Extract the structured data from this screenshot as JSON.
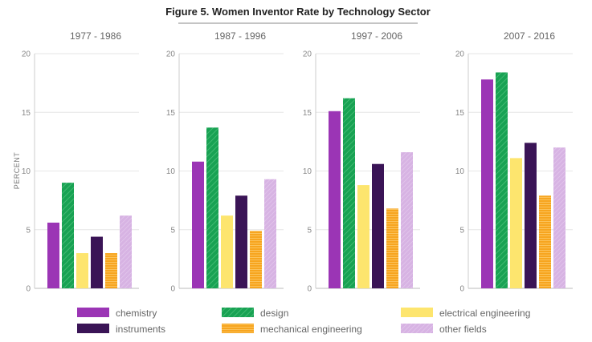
{
  "chart_data": {
    "type": "bar",
    "title": "Figure 5. Women Inventor Rate by Technology Sector",
    "ylabel": "PERCENT",
    "xlabel": "",
    "ylim": [
      0,
      20
    ],
    "yticks": [
      0,
      5,
      10,
      15,
      20
    ],
    "grid": true,
    "legend_position": "bottom",
    "panels": [
      {
        "title": "1977 - 1986",
        "values": [
          5.6,
          9.0,
          3.0,
          4.4,
          3.0,
          6.2
        ]
      },
      {
        "title": "1987 - 1996",
        "values": [
          10.8,
          13.7,
          6.2,
          7.9,
          4.9,
          9.3
        ]
      },
      {
        "title": "1997 - 2006",
        "values": [
          15.1,
          16.2,
          8.8,
          10.6,
          6.8,
          11.6
        ]
      },
      {
        "title": "2007 - 2016",
        "values": [
          17.8,
          18.4,
          11.1,
          12.4,
          7.9,
          12.0
        ]
      }
    ],
    "series": [
      {
        "name": "chemistry",
        "color": "#9b35b5",
        "pattern": "solid"
      },
      {
        "name": "design",
        "color": "#18a253",
        "pattern": "diagonal-hatch"
      },
      {
        "name": "electrical engineering",
        "color": "#fde56e",
        "pattern": "solid"
      },
      {
        "name": "instruments",
        "color": "#3a1456",
        "pattern": "solid"
      },
      {
        "name": "mechanical engineering",
        "color": "#f7a51f",
        "pattern": "horizontal-hatch"
      },
      {
        "name": "other fields",
        "color": "#d7b3e3",
        "pattern": "light-hatch"
      }
    ],
    "legend_order": [
      "chemistry",
      "design",
      "electrical engineering",
      "instruments",
      "mechanical engineering",
      "other fields"
    ]
  }
}
